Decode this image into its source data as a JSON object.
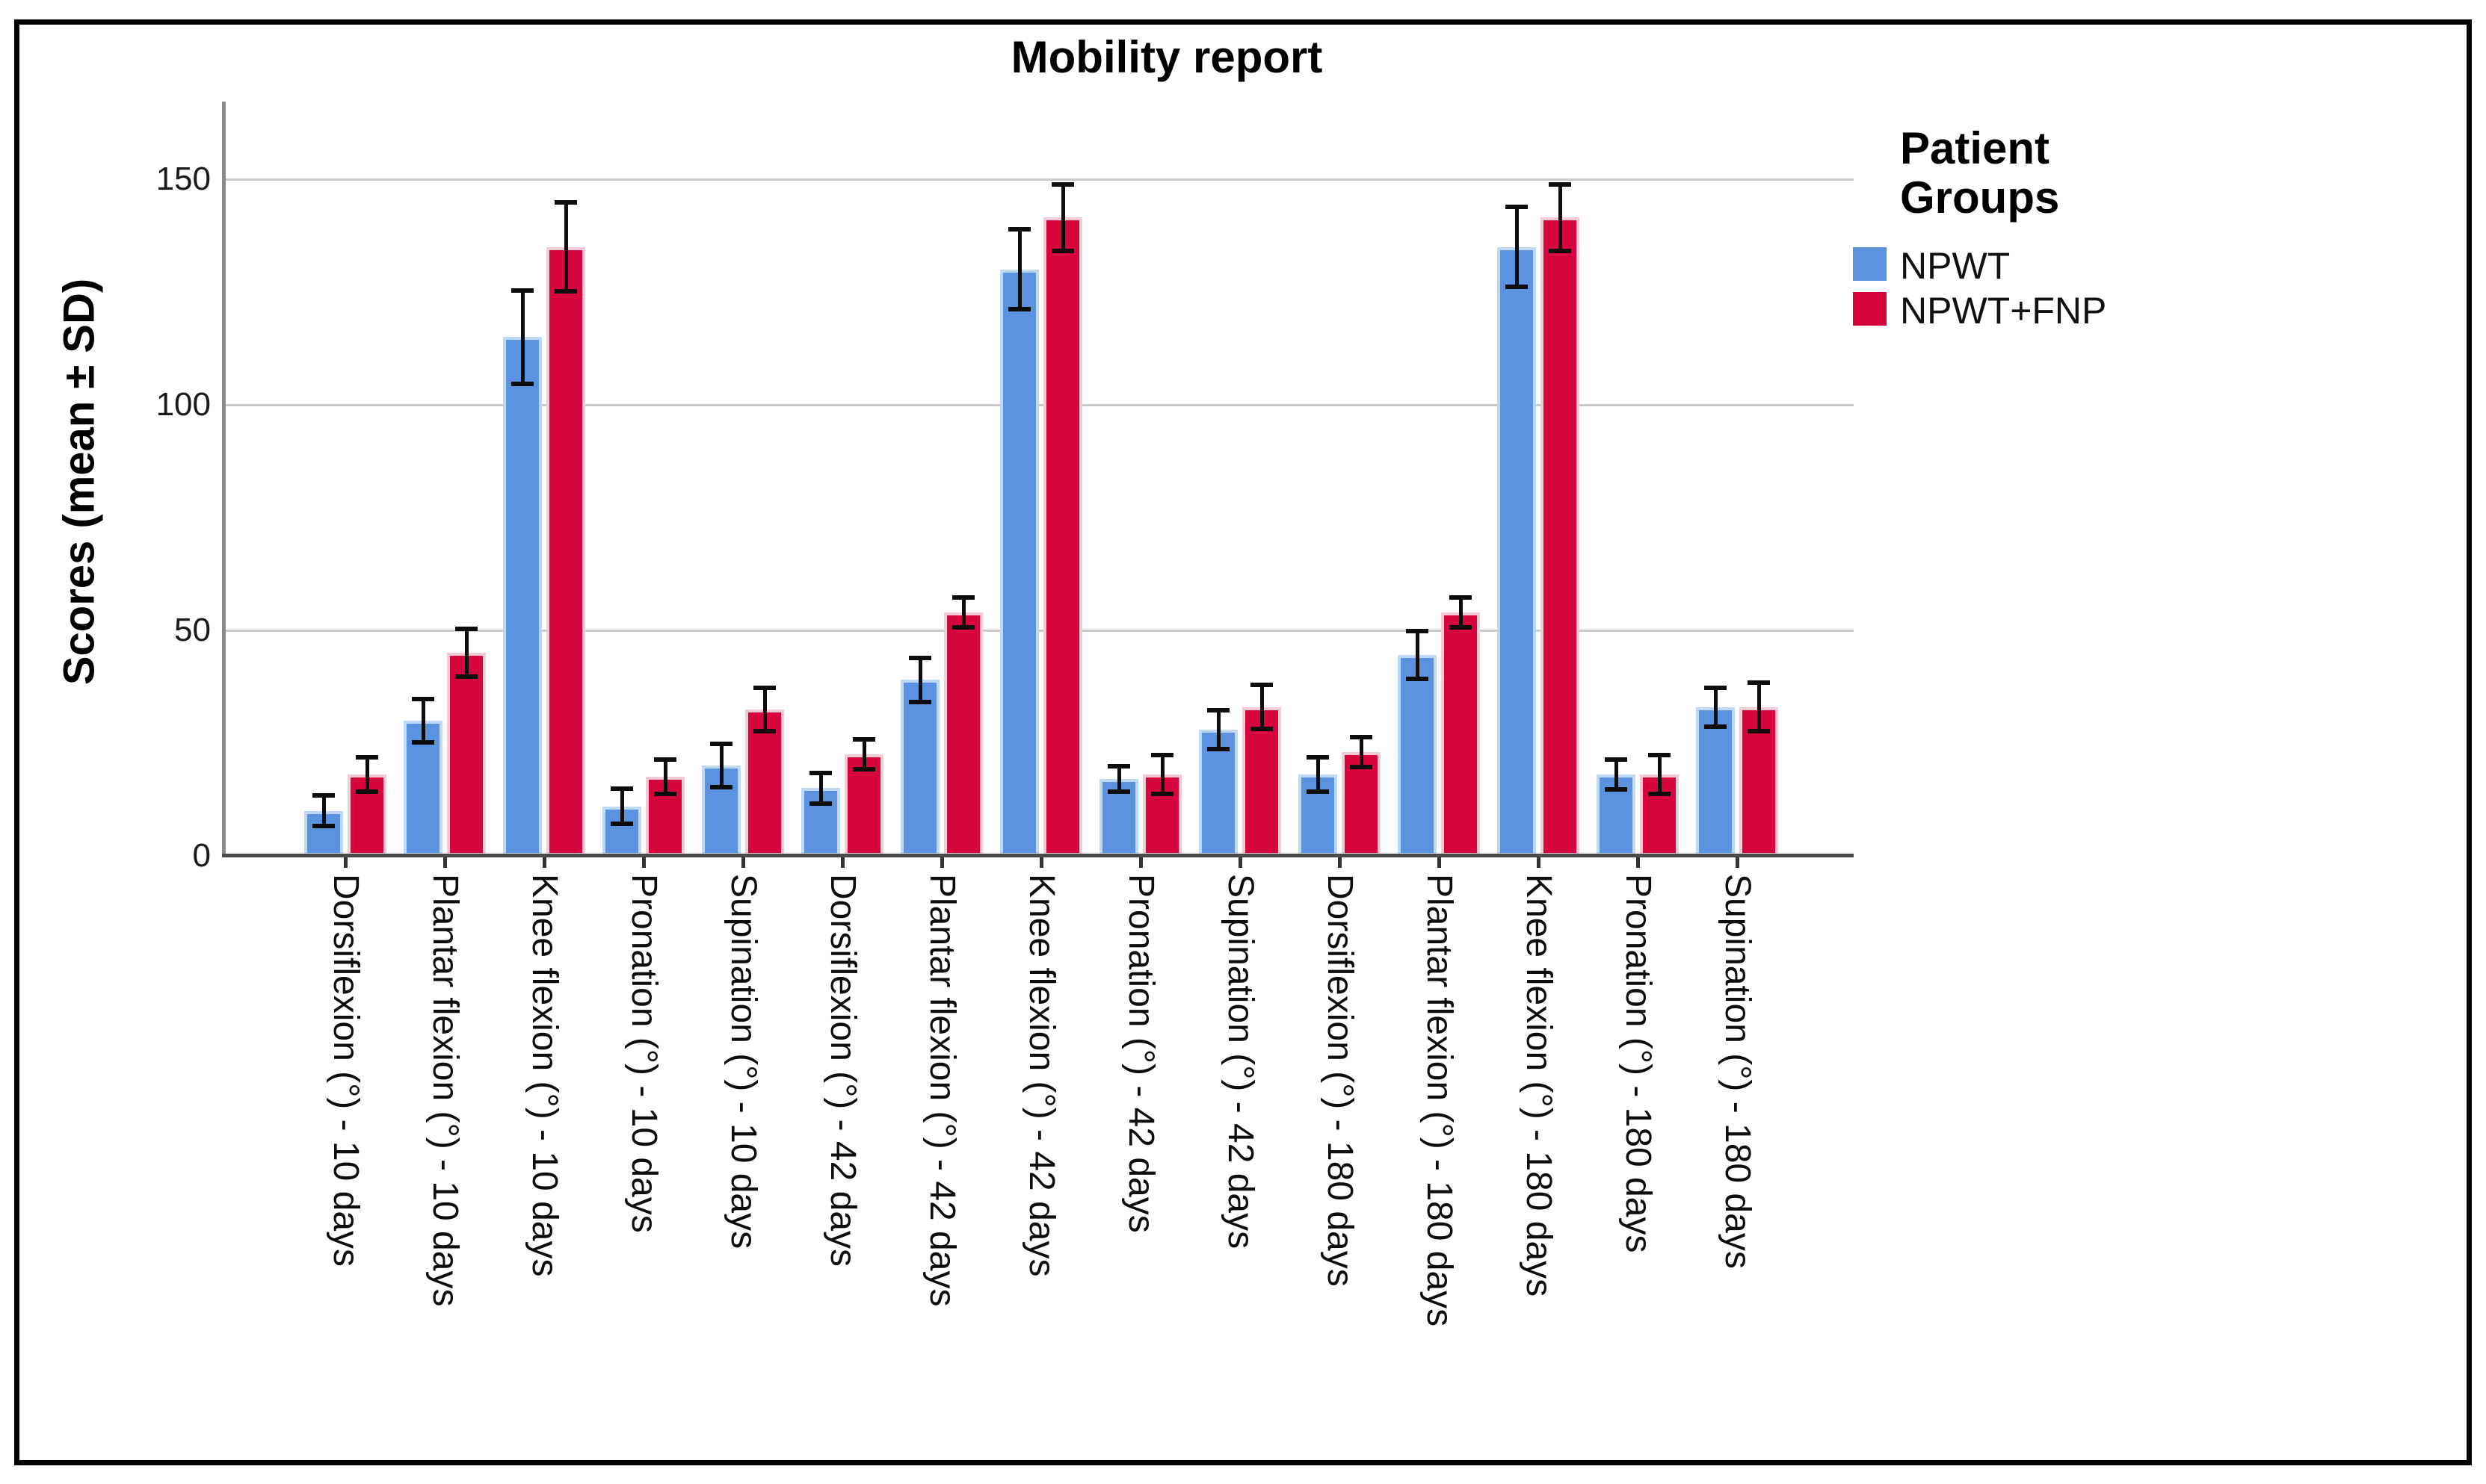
{
  "chart_data": {
    "type": "bar",
    "title": "Mobility report",
    "ylabel": "Scores (mean ± SD)",
    "xlabel": "",
    "legend_title": "Patient Groups",
    "legend_position": "right",
    "grid": true,
    "ylim": [
      0,
      167
    ],
    "yticks": [
      0,
      50,
      100,
      150
    ],
    "error_bars": true,
    "categories": [
      "Dorsiflexion (°) - 10 days",
      "Plantar flexion (°) - 10 days",
      "Knee flexion (°) - 10 days",
      "Pronation (°) - 10 days",
      "Supination (°) - 10 days",
      "Dorsiflexion (°) - 42 days",
      "Plantar flexion (°) - 42 days",
      "Knee flexion (°) - 42 days",
      "Pronation (°) - 42 days",
      "Supination (°) - 42 days",
      "Dorsiflexion (°) - 180 days",
      "Plantar flexion (°) - 180 days",
      "Knee flexion (°) - 180 days",
      "Pronation (°) - 180 days",
      "Supination (°) - 180 days"
    ],
    "series": [
      {
        "name": "NPWT",
        "color": "#5B93E0",
        "edge_color": "#BFD9F4",
        "values": [
          10,
          30,
          115,
          11,
          20,
          15,
          39,
          130,
          17,
          28,
          18,
          44.5,
          135,
          18,
          33
        ],
        "sd": [
          3.5,
          5,
          10.5,
          4,
          5,
          3.5,
          5,
          9,
          3,
          4.5,
          4,
          5.5,
          9,
          3.5,
          4.5
        ]
      },
      {
        "name": "NPWT+FNP",
        "color": "#D6063C",
        "edge_color": "#F2CBD7",
        "values": [
          18,
          45,
          135,
          17.5,
          32.5,
          22.5,
          54,
          141.5,
          18,
          33,
          23,
          54,
          141.5,
          18,
          33
        ],
        "sd": [
          4,
          5.5,
          10,
          4,
          5,
          3.5,
          3.5,
          7.5,
          4.5,
          5,
          3.5,
          3.5,
          7.5,
          4.5,
          5.5
        ]
      }
    ],
    "colors": {
      "gridline": "#c9c9c9",
      "y_axis_line": "#8a8a8a",
      "x_axis_line": "#4a4a4a",
      "error_bar": "#0d0d0d",
      "frame_border": "#000000",
      "background": "#ffffff"
    }
  }
}
